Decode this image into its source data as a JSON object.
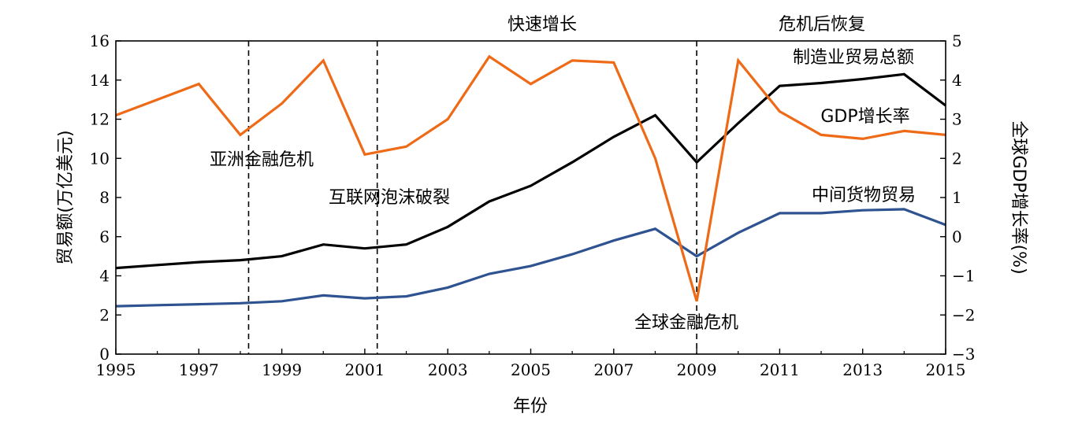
{
  "chart_data": {
    "type": "line",
    "xlabel": "年份",
    "ylabel_left": "贸易额(万亿美元)",
    "ylabel_right": "全球GDP增长率(%)",
    "x_ticks": [
      "1995",
      "1997",
      "1999",
      "2001",
      "2003",
      "2005",
      "2007",
      "2009",
      "2011",
      "2013",
      "2015"
    ],
    "y_left_ticks": [
      "0",
      "2",
      "4",
      "6",
      "8",
      "10",
      "12",
      "14",
      "16"
    ],
    "y_right_ticks": [
      "−3",
      "−2",
      "−1",
      "0",
      "1",
      "2",
      "3",
      "4",
      "5"
    ],
    "xlim": [
      1995,
      2015
    ],
    "ylim_left": [
      0,
      16
    ],
    "ylim_right": [
      -3,
      5
    ],
    "grid": false,
    "series": [
      {
        "name": "制造业贸易总额",
        "axis": "left",
        "color": "#000000",
        "x": [
          1995,
          1996,
          1997,
          1998,
          1999,
          2000,
          2001,
          2002,
          2003,
          2004,
          2005,
          2006,
          2007,
          2008,
          2009,
          2010,
          2011,
          2012,
          2013,
          2014,
          2015
        ],
        "values": [
          4.4,
          4.55,
          4.7,
          4.8,
          5.0,
          5.6,
          5.4,
          5.6,
          6.5,
          7.8,
          8.6,
          9.8,
          11.1,
          12.2,
          9.8,
          11.8,
          13.7,
          13.85,
          14.05,
          14.3,
          12.7
        ]
      },
      {
        "name": "中间货物贸易",
        "axis": "left",
        "color": "#2e5390",
        "x": [
          1995,
          1996,
          1997,
          1998,
          1999,
          2000,
          2001,
          2002,
          2003,
          2004,
          2005,
          2006,
          2007,
          2008,
          2009,
          2010,
          2011,
          2012,
          2013,
          2014,
          2015
        ],
        "values": [
          2.45,
          2.5,
          2.55,
          2.6,
          2.7,
          3.0,
          2.85,
          2.95,
          3.4,
          4.1,
          4.5,
          5.1,
          5.8,
          6.4,
          5.0,
          6.2,
          7.2,
          7.2,
          7.35,
          7.4,
          6.6
        ]
      },
      {
        "name": "GDP增长率",
        "axis": "right",
        "color": "#ee6a17",
        "x": [
          1995,
          1996,
          1997,
          1998,
          1999,
          2000,
          2001,
          2002,
          2003,
          2004,
          2005,
          2006,
          2007,
          2008,
          2009,
          2010,
          2011,
          2012,
          2013,
          2014,
          2015
        ],
        "values": [
          3.1,
          3.5,
          3.9,
          2.6,
          3.4,
          4.5,
          2.1,
          2.3,
          3.0,
          4.6,
          3.9,
          4.5,
          4.45,
          2.0,
          -1.65,
          4.5,
          3.2,
          2.6,
          2.5,
          2.7,
          2.6
        ]
      }
    ],
    "vlines": [
      1998.2,
      2001.3,
      2009.0
    ],
    "annotations": {
      "asia_crisis": "亚洲金融危机",
      "dotcom": "互联网泡沫破裂",
      "rapid_growth": "快速增长",
      "recovery": "危机后恢复",
      "global_crisis": "全球金融危机",
      "manufacturing": "制造业贸易总额",
      "gdp": "GDP增长率",
      "intermediate": "中间货物贸易"
    }
  }
}
